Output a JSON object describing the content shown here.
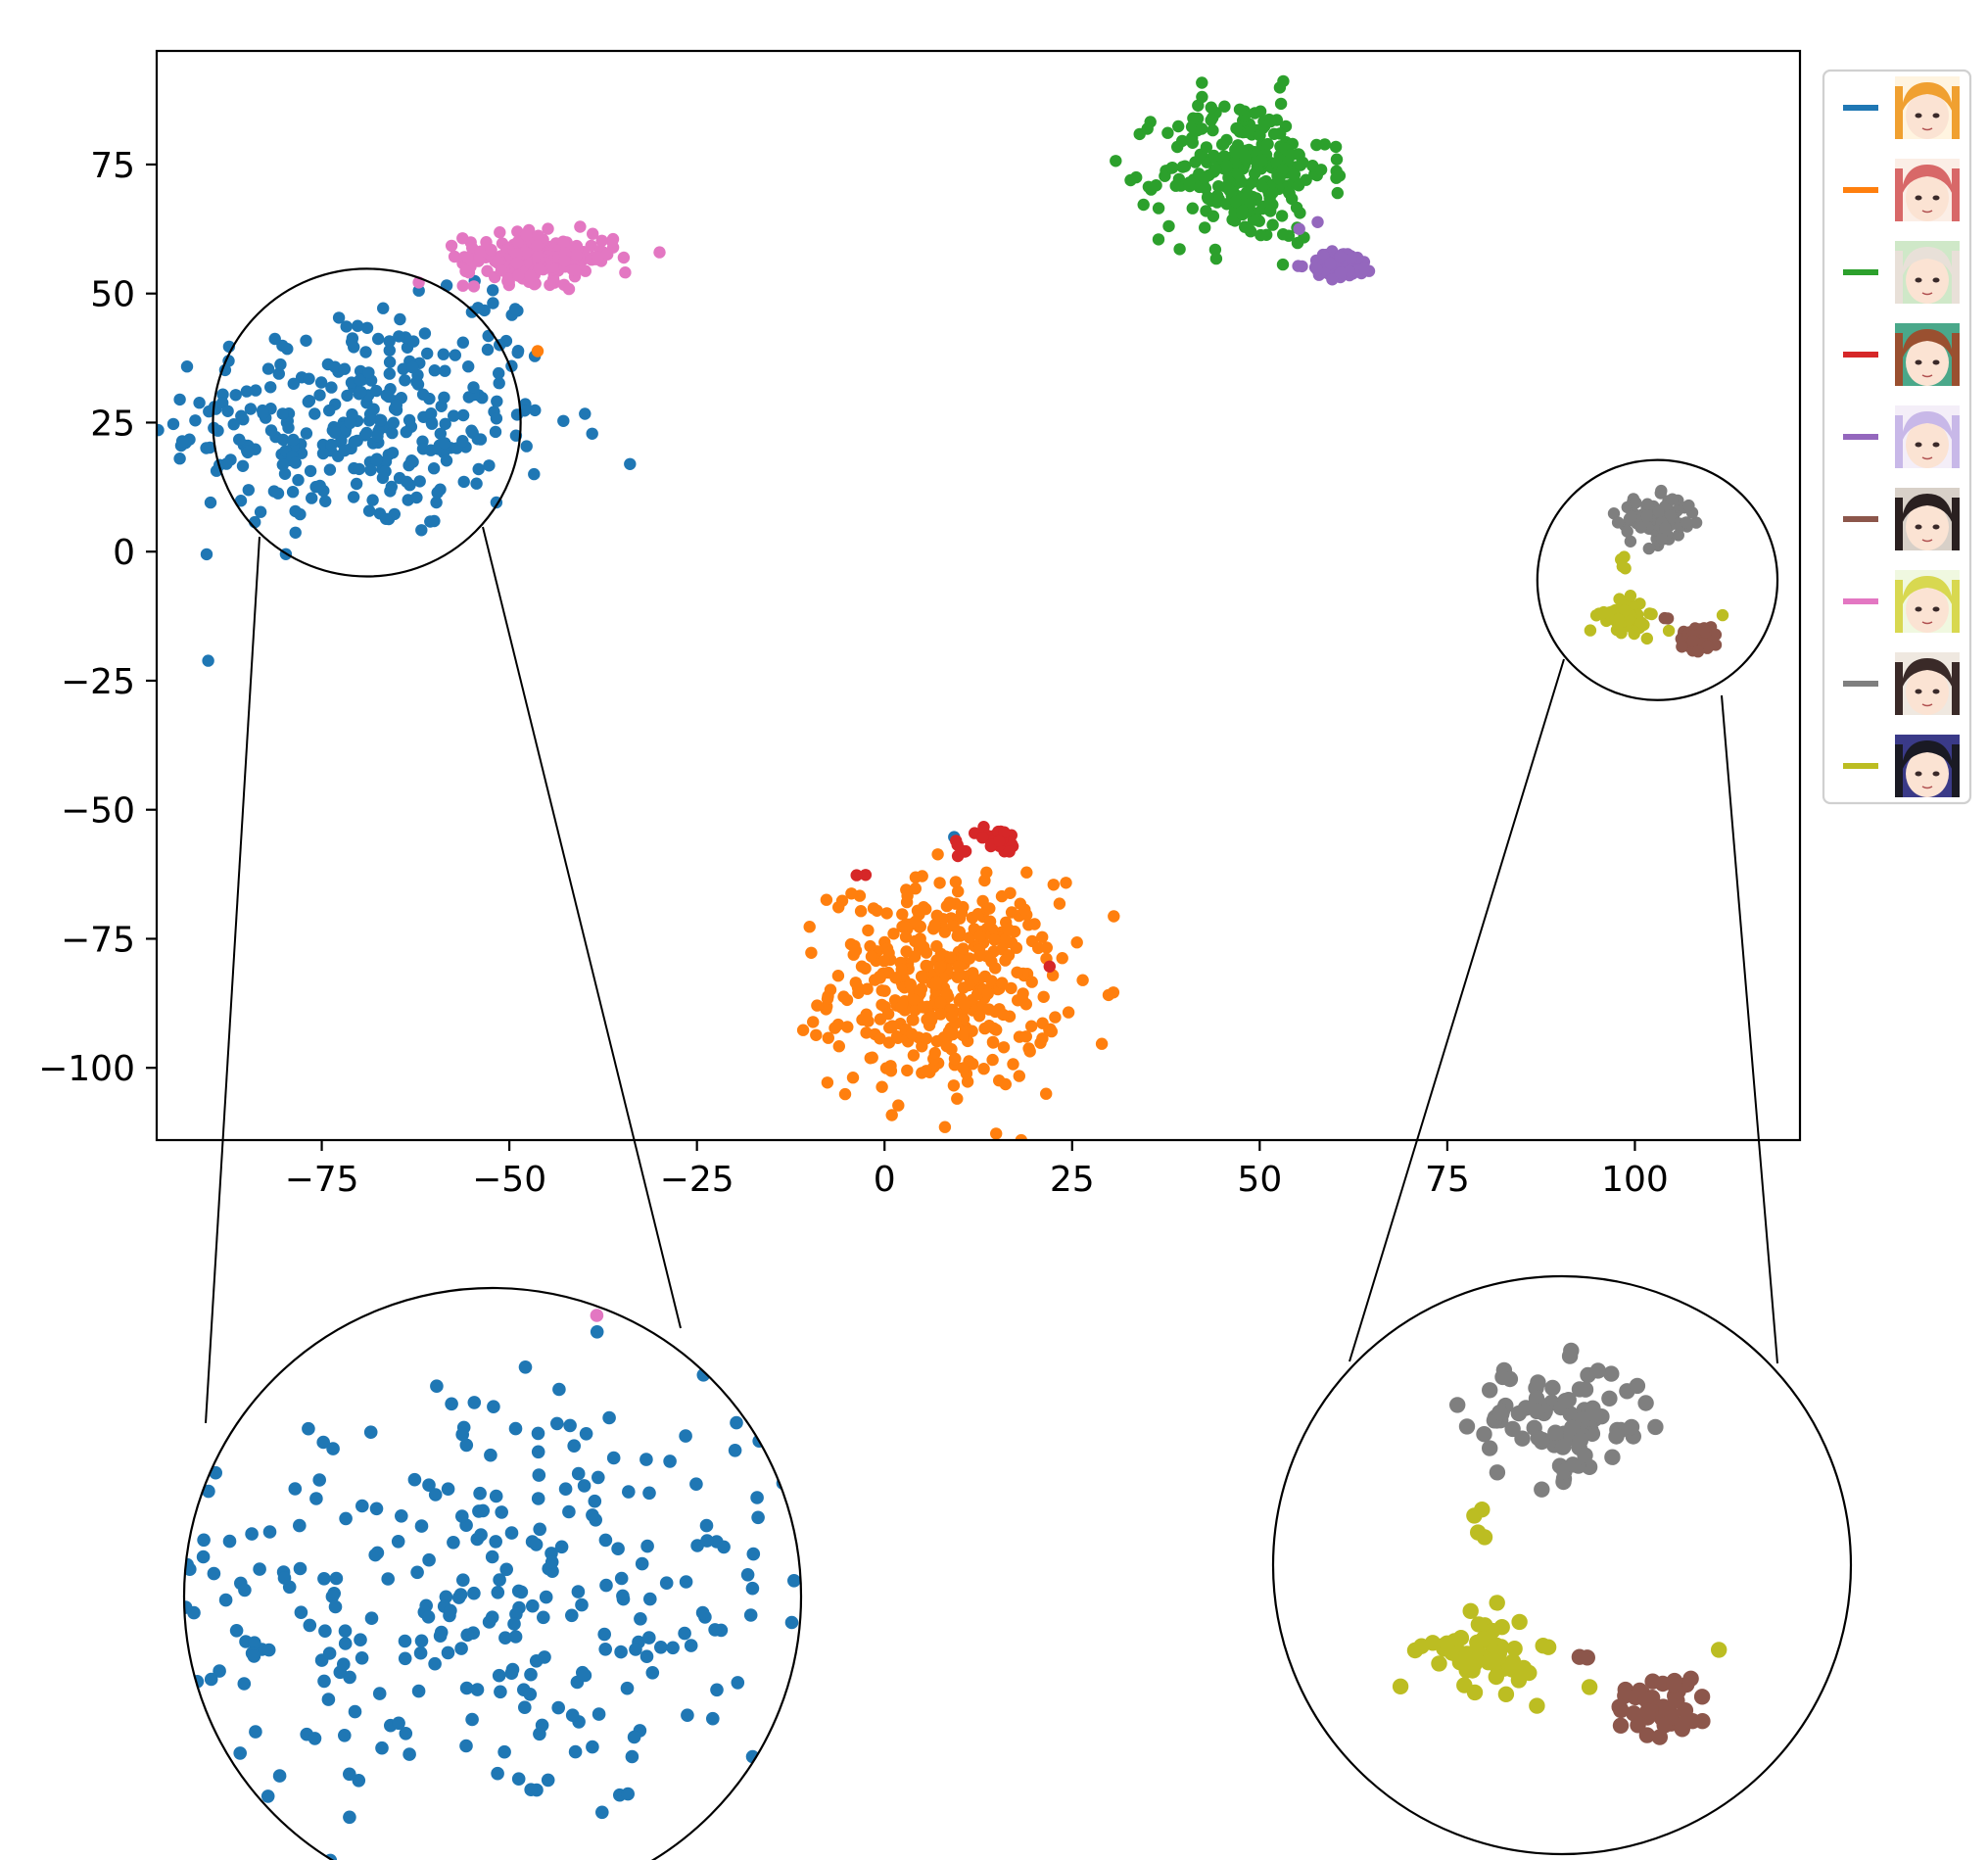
{
  "chart_data": {
    "type": "scatter",
    "title": "",
    "xlabel": "",
    "ylabel": "",
    "xlim": [
      -97,
      122
    ],
    "ylim": [
      -114,
      97
    ],
    "xticks": [
      -75,
      -50,
      -25,
      0,
      25,
      50,
      75,
      100
    ],
    "yticks": [
      -100,
      -75,
      -50,
      -25,
      0,
      25,
      50,
      75
    ],
    "xtick_labels": [
      "−75",
      "−50",
      "−25",
      "0",
      "25",
      "50",
      "75",
      "100"
    ],
    "ytick_labels": [
      "−100",
      "−75",
      "−50",
      "−25",
      "0",
      "25",
      "50",
      "75"
    ],
    "grid": false,
    "legend_position": "outside-top-right",
    "legend_note": "legend entries are colored lines paired with small character face thumbnails; no text labels",
    "series": [
      {
        "color": "#1f77b4",
        "clusters": [
          {
            "cx": -70,
            "cy": 25,
            "sx": 13,
            "sy": 11,
            "n": 320
          },
          {
            "cx": -52,
            "cy": 47,
            "sx": 3,
            "sy": 3,
            "n": 8
          },
          {
            "cx": 9,
            "cy": -56,
            "sx": 0.5,
            "sy": 0.5,
            "n": 1
          }
        ]
      },
      {
        "color": "#ff7f0e",
        "clusters": [
          {
            "cx": 8,
            "cy": -84,
            "sx": 7.5,
            "sy": 10,
            "n": 420
          },
          {
            "cx": -46,
            "cy": 39,
            "sx": 0.5,
            "sy": 0.5,
            "n": 1
          }
        ]
      },
      {
        "color": "#2ca02c",
        "clusters": [
          {
            "cx": 48,
            "cy": 74,
            "sx": 5.5,
            "sy": 7,
            "n": 260
          }
        ]
      },
      {
        "color": "#d62728",
        "clusters": [
          {
            "cx": 15,
            "cy": -56,
            "sx": 1.5,
            "sy": 1.3,
            "n": 30
          },
          {
            "cx": 10,
            "cy": -58,
            "sx": 1,
            "sy": 1,
            "n": 6
          },
          {
            "cx": -3,
            "cy": -63,
            "sx": 0.5,
            "sy": 0.4,
            "n": 2
          },
          {
            "cx": 22,
            "cy": -80,
            "sx": 0.3,
            "sy": 0.3,
            "n": 1
          }
        ]
      },
      {
        "color": "#9467bd",
        "clusters": [
          {
            "cx": 61,
            "cy": 55.5,
            "sx": 2.2,
            "sy": 1.3,
            "n": 70
          },
          {
            "cx": 57,
            "cy": 63,
            "sx": 1,
            "sy": 0.5,
            "n": 2
          }
        ]
      },
      {
        "color": "#8c564b",
        "clusters": [
          {
            "cx": 108.5,
            "cy": -16.5,
            "sx": 1.4,
            "sy": 1.4,
            "n": 40
          },
          {
            "cx": 104,
            "cy": -13,
            "sx": 0.4,
            "sy": 0.4,
            "n": 2
          }
        ]
      },
      {
        "color": "#e377c2",
        "clusters": [
          {
            "cx": -46,
            "cy": 57,
            "sx": 5,
            "sy": 2.3,
            "n": 200
          }
        ]
      },
      {
        "color": "#7f7f7f",
        "clusters": [
          {
            "cx": 103,
            "cy": 6,
            "sx": 2.6,
            "sy": 2.3,
            "n": 90
          }
        ]
      },
      {
        "color": "#bcbd22",
        "clusters": [
          {
            "cx": 98.5,
            "cy": -12.5,
            "sx": 1.5,
            "sy": 1.5,
            "n": 60
          },
          {
            "cx": 98.5,
            "cy": -2,
            "sx": 0.4,
            "sy": 0.8,
            "n": 4
          },
          {
            "cx": 105,
            "cy": -15,
            "sx": 0.3,
            "sy": 0.3,
            "n": 1
          },
          {
            "cx": 112,
            "cy": -12,
            "sx": 0.3,
            "sy": 0.3,
            "n": 1
          }
        ]
      }
    ],
    "zoom_regions": [
      {
        "center": [
          -69,
          25
        ],
        "radius_data": 20.5
      },
      {
        "center": [
          103,
          -5.5
        ],
        "radius_data": 16
      }
    ]
  }
}
